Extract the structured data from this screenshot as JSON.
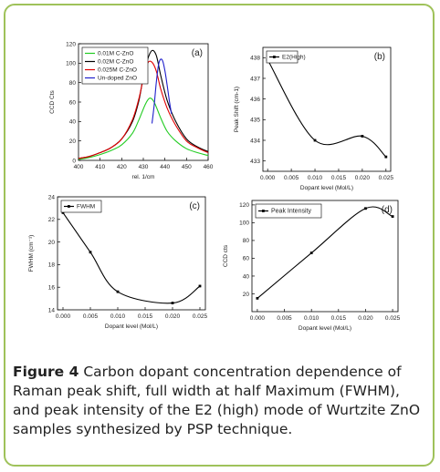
{
  "caption": {
    "label": "Figure 4",
    "text": "Carbon dopant concentration dependence of Raman peak shift, full width at half Maximum (FWHM), and peak intensity of the E2 (high) mode of Wurtzite ZnO samples synthesized by PSP technique."
  },
  "colors": {
    "frame": "#9fc25a",
    "green": "#22cc22",
    "black": "#000000",
    "red": "#e00000",
    "blue": "#2020cc"
  },
  "chart_data": [
    {
      "type": "line",
      "panel_label": "(a)",
      "xlabel": "rel. 1/cm",
      "ylabel": "CCD Cts",
      "xlim": [
        400,
        460
      ],
      "ylim": [
        0,
        120
      ],
      "xticks": [
        400,
        410,
        420,
        430,
        440,
        450,
        460
      ],
      "yticks": [
        0,
        20,
        40,
        60,
        80,
        100,
        120
      ],
      "legend_position": "top-left",
      "series": [
        {
          "name": "0.01M C-ZnO",
          "color": "#22cc22",
          "x": [
            400,
            405,
            410,
            415,
            420,
            425,
            428,
            431,
            433,
            435,
            438,
            441,
            445,
            450,
            455,
            460
          ],
          "y": [
            1,
            3,
            6,
            10,
            16,
            28,
            42,
            58,
            64,
            60,
            44,
            30,
            20,
            12,
            8,
            5
          ]
        },
        {
          "name": "0.02M C-ZnO",
          "color": "#000000",
          "x": [
            400,
            405,
            410,
            415,
            420,
            425,
            428,
            430,
            432,
            434,
            436,
            438,
            441,
            445,
            450,
            455,
            460
          ],
          "y": [
            2,
            4,
            8,
            13,
            22,
            40,
            62,
            86,
            104,
            113,
            108,
            88,
            62,
            40,
            22,
            14,
            9
          ]
        },
        {
          "name": "0.025M C-ZnO",
          "color": "#e00000",
          "x": [
            400,
            405,
            410,
            415,
            420,
            425,
            428,
            430,
            432,
            434,
            436,
            438,
            441,
            445,
            450,
            455,
            460
          ],
          "y": [
            2,
            4,
            8,
            13,
            22,
            42,
            64,
            84,
            100,
            101,
            92,
            74,
            54,
            36,
            20,
            13,
            8
          ]
        },
        {
          "name": "Un-doped ZnO",
          "color": "#2020cc",
          "x": [
            434,
            435,
            436,
            437,
            438,
            439,
            440,
            441,
            442,
            443
          ],
          "y": [
            38,
            56,
            80,
            98,
            104,
            102,
            92,
            78,
            62,
            48
          ]
        }
      ]
    },
    {
      "type": "line",
      "panel_label": "(b)",
      "xlabel": "Dopant level (Mol/L)",
      "ylabel": "Peak Shift (cm-1)",
      "xlim": [
        -0.001,
        0.026
      ],
      "ylim": [
        432.5,
        438.5
      ],
      "xticks": [
        0.0,
        0.005,
        0.01,
        0.015,
        0.02,
        0.025
      ],
      "xtick_labels": [
        "0.000",
        "0.005",
        "0.010",
        "0.015",
        "0.020",
        "0.025"
      ],
      "yticks": [
        433,
        434,
        435,
        436,
        437,
        438
      ],
      "legend_position": "top-left",
      "series": [
        {
          "name": "E2(High)",
          "color": "#000000",
          "x": [
            0.0,
            0.01,
            0.02,
            0.025
          ],
          "y": [
            437.9,
            434.0,
            434.2,
            433.2
          ]
        }
      ]
    },
    {
      "type": "line",
      "panel_label": "(c)",
      "xlabel": "Dopant level (Mol/L)",
      "ylabel": "FWHM (cm⁻¹)",
      "xlim": [
        -0.001,
        0.026
      ],
      "ylim": [
        14,
        24
      ],
      "xticks": [
        0.0,
        0.005,
        0.01,
        0.015,
        0.02,
        0.025
      ],
      "xtick_labels": [
        "0.000",
        "0.005",
        "0.010",
        "0.015",
        "0.020",
        "0.025"
      ],
      "yticks": [
        14,
        16,
        18,
        20,
        22,
        24
      ],
      "legend_position": "top-left",
      "series": [
        {
          "name": "FWHM",
          "color": "#000000",
          "x": [
            0.0,
            0.005,
            0.01,
            0.02,
            0.025
          ],
          "y": [
            22.6,
            19.1,
            15.6,
            14.6,
            16.1
          ]
        }
      ]
    },
    {
      "type": "line",
      "panel_label": "(d)",
      "xlabel": "Dopant level (Mol/L)",
      "ylabel": "CCD cts",
      "xlim": [
        -0.001,
        0.026
      ],
      "ylim": [
        0,
        125
      ],
      "xticks": [
        0.0,
        0.005,
        0.01,
        0.015,
        0.02,
        0.025
      ],
      "xtick_labels": [
        "0.000",
        "0.005",
        "0.010",
        "0.015",
        "0.020",
        "0.025"
      ],
      "yticks": [
        20,
        40,
        60,
        80,
        100,
        120
      ],
      "legend_position": "top-left",
      "series": [
        {
          "name": "Peak Intensity",
          "color": "#000000",
          "x": [
            0.0,
            0.01,
            0.02,
            0.025
          ],
          "y": [
            15,
            66,
            116,
            107
          ]
        }
      ]
    }
  ]
}
